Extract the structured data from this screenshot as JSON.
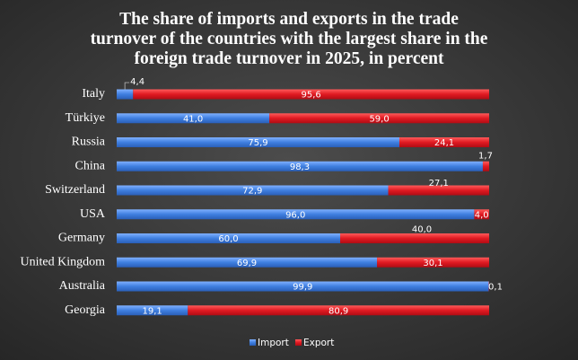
{
  "chart_data": {
    "type": "bar",
    "orientation": "horizontal",
    "stacked": "percent",
    "title_lines": [
      "The share of imports and exports in the trade",
      "turnover of the countries with the largest share in the",
      "foreign trade turnover in 2025, in percent"
    ],
    "categories": [
      "Italy",
      "Türkiye",
      "Russia",
      "China",
      "Switzerland",
      "USA",
      "Germany",
      "United Kingdom",
      "Australia",
      "Georgia"
    ],
    "series": [
      {
        "name": "Import",
        "color": "#4a86e8",
        "values": [
          4.4,
          41.0,
          75.9,
          98.3,
          72.9,
          96.0,
          60.0,
          69.9,
          99.9,
          19.1
        ],
        "labels": [
          "4,4",
          "41,0",
          "75,9",
          "98,3",
          "72,9",
          "96,0",
          "60,0",
          "69,9",
          "99,9",
          "19,1"
        ]
      },
      {
        "name": "Export",
        "color": "#e8202a",
        "values": [
          95.6,
          59.0,
          24.1,
          1.7,
          27.1,
          4.0,
          40.0,
          30.1,
          0.1,
          80.9
        ],
        "labels": [
          "95,6",
          "59,0",
          "24,1",
          "1,7",
          "27,1",
          "4,0",
          "40,0",
          "30,1",
          "0,1",
          "80,9"
        ]
      }
    ],
    "xlim": [
      0,
      100
    ],
    "legend": "bottom",
    "grid": false,
    "background": "#3a3a3a"
  }
}
